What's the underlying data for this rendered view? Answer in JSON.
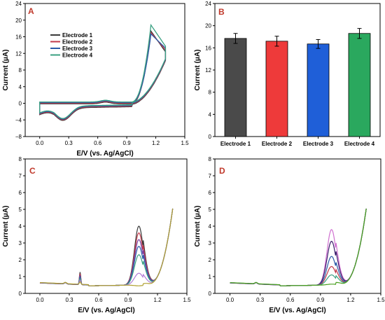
{
  "figure": {
    "electrodes": [
      "Electrode 1",
      "Electrode 2",
      "Electrode 3",
      "Electrode 4"
    ],
    "electrode_colors": [
      "#3a3a3a",
      "#c0394a",
      "#2a5aa8",
      "#3aa082"
    ]
  },
  "chart_data": [
    {
      "panel": "A",
      "type": "line",
      "title": "",
      "xlabel": "E/V (vs. Ag/AgCl)",
      "ylabel": "Current (μA)",
      "xlim": [
        -0.15,
        1.5
      ],
      "ylim": [
        -8,
        24
      ],
      "xticks": [
        "0.0",
        "0.3",
        "0.6",
        "0.9",
        "1.2",
        "1.5"
      ],
      "yticks": [
        "−8",
        "−4",
        "0",
        "4",
        "8",
        "12",
        "16",
        "20",
        "24"
      ],
      "legend_position": "upper-left",
      "series": [
        {
          "name": "Electrode 1",
          "color": "#3a3a3a",
          "peak": 17.5
        },
        {
          "name": "Electrode 2",
          "color": "#c0394a",
          "peak": 17.0
        },
        {
          "name": "Electrode 3",
          "color": "#2a5aa8",
          "peak": 16.5
        },
        {
          "name": "Electrode 4",
          "color": "#3aa082",
          "peak": 18.5
        }
      ]
    },
    {
      "panel": "B",
      "type": "bar",
      "title": "",
      "xlabel": "",
      "ylabel": "Current (μA)",
      "ylim": [
        0,
        24
      ],
      "yticks": [
        "0",
        "4",
        "8",
        "12",
        "16",
        "20",
        "24"
      ],
      "categories": [
        "Electrode 1",
        "Electrode 2",
        "Electrode 3",
        "Electrode 4"
      ],
      "values": [
        17.7,
        17.2,
        16.7,
        18.6
      ],
      "errors": [
        0.9,
        0.9,
        0.8,
        0.9
      ],
      "colors": [
        "#4a4a4a",
        "#ee3a3a",
        "#1f5fd8",
        "#2aa85e"
      ]
    },
    {
      "panel": "C",
      "type": "line",
      "title": "",
      "xlabel": "E/V (vs. Ag/AgCl)",
      "ylabel": "Current (μA)",
      "xlim": [
        -0.15,
        1.5
      ],
      "ylim": [
        0,
        8
      ],
      "xticks": [
        "0.0",
        "0.3",
        "0.6",
        "0.9",
        "1.2",
        "1.5"
      ],
      "yticks": [
        "0",
        "1",
        "2",
        "3",
        "4",
        "5",
        "6",
        "7",
        "8"
      ],
      "series": [
        {
          "color": "#3a3a3a",
          "peak": 4.4,
          "spike": 1.25
        },
        {
          "color": "#c0394a",
          "peak": 4.0,
          "spike": 1.15
        },
        {
          "color": "#7b3fa0",
          "peak": 3.6,
          "spike": 1.05
        },
        {
          "color": "#2a5aa8",
          "peak": 3.2,
          "spike": 0.95
        },
        {
          "color": "#3aa082",
          "peak": 2.7,
          "spike": 0.85
        },
        {
          "color": "#b07cd6",
          "peak": 1.6,
          "spike": 0.75
        },
        {
          "color": "#b0a030",
          "peak": 0.85,
          "spike": 0.65
        }
      ]
    },
    {
      "panel": "D",
      "type": "line",
      "title": "",
      "xlabel": "E/V (vs. Ag/AgCl)",
      "ylabel": "Current (μA)",
      "xlim": [
        -0.15,
        1.5
      ],
      "ylim": [
        0,
        8
      ],
      "xticks": [
        "0.0",
        "0.3",
        "0.6",
        "0.9",
        "1.2",
        "1.5"
      ],
      "yticks": [
        "0",
        "1",
        "2",
        "3",
        "4",
        "5",
        "6",
        "7",
        "8"
      ],
      "series": [
        {
          "color": "#d070d0",
          "peak": 4.2
        },
        {
          "color": "#3a1a6a",
          "peak": 3.5
        },
        {
          "color": "#2a5aa8",
          "peak": 2.6
        },
        {
          "color": "#c0394a",
          "peak": 2.0
        },
        {
          "color": "#3aa082",
          "peak": 1.5
        },
        {
          "color": "#4aa020",
          "peak": 0.95
        }
      ]
    }
  ]
}
